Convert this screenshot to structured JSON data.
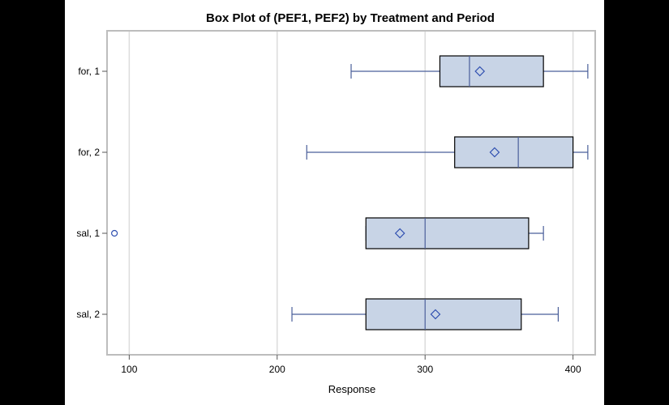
{
  "chart_data": {
    "type": "box",
    "title": "Box Plot of (PEF1, PEF2) by Treatment and Period",
    "xlabel": "Response",
    "ylabel": "",
    "xlim": [
      85,
      415
    ],
    "xticks": [
      100,
      200,
      300,
      400
    ],
    "grid": "vertical",
    "colors": {
      "box_fill": "#c8d4e6",
      "box_edge": "#000000",
      "whisker": "#4a5f9a",
      "median": "#4a5f9a",
      "mean_marker": "#2f4fb0",
      "outlier": "#2f4fb0",
      "grid": "#dcdcdc",
      "frame": "#bdbdbd"
    },
    "categories": [
      "for, 1",
      "for, 2",
      "sal, 1",
      "sal, 2"
    ],
    "boxes": [
      {
        "label": "for, 1",
        "min": 250,
        "q1": 310,
        "median": 330,
        "q3": 380,
        "max": 410,
        "mean": 337,
        "outliers": []
      },
      {
        "label": "for, 2",
        "min": 220,
        "q1": 320,
        "median": 363,
        "q3": 400,
        "max": 410,
        "mean": 347,
        "outliers": []
      },
      {
        "label": "sal, 1",
        "min": 260,
        "q1": 260,
        "median": 300,
        "q3": 370,
        "max": 380,
        "mean": 283,
        "outliers": [
          90
        ]
      },
      {
        "label": "sal, 2",
        "min": 210,
        "q1": 260,
        "median": 300,
        "q3": 365,
        "max": 390,
        "mean": 307,
        "outliers": []
      }
    ]
  }
}
